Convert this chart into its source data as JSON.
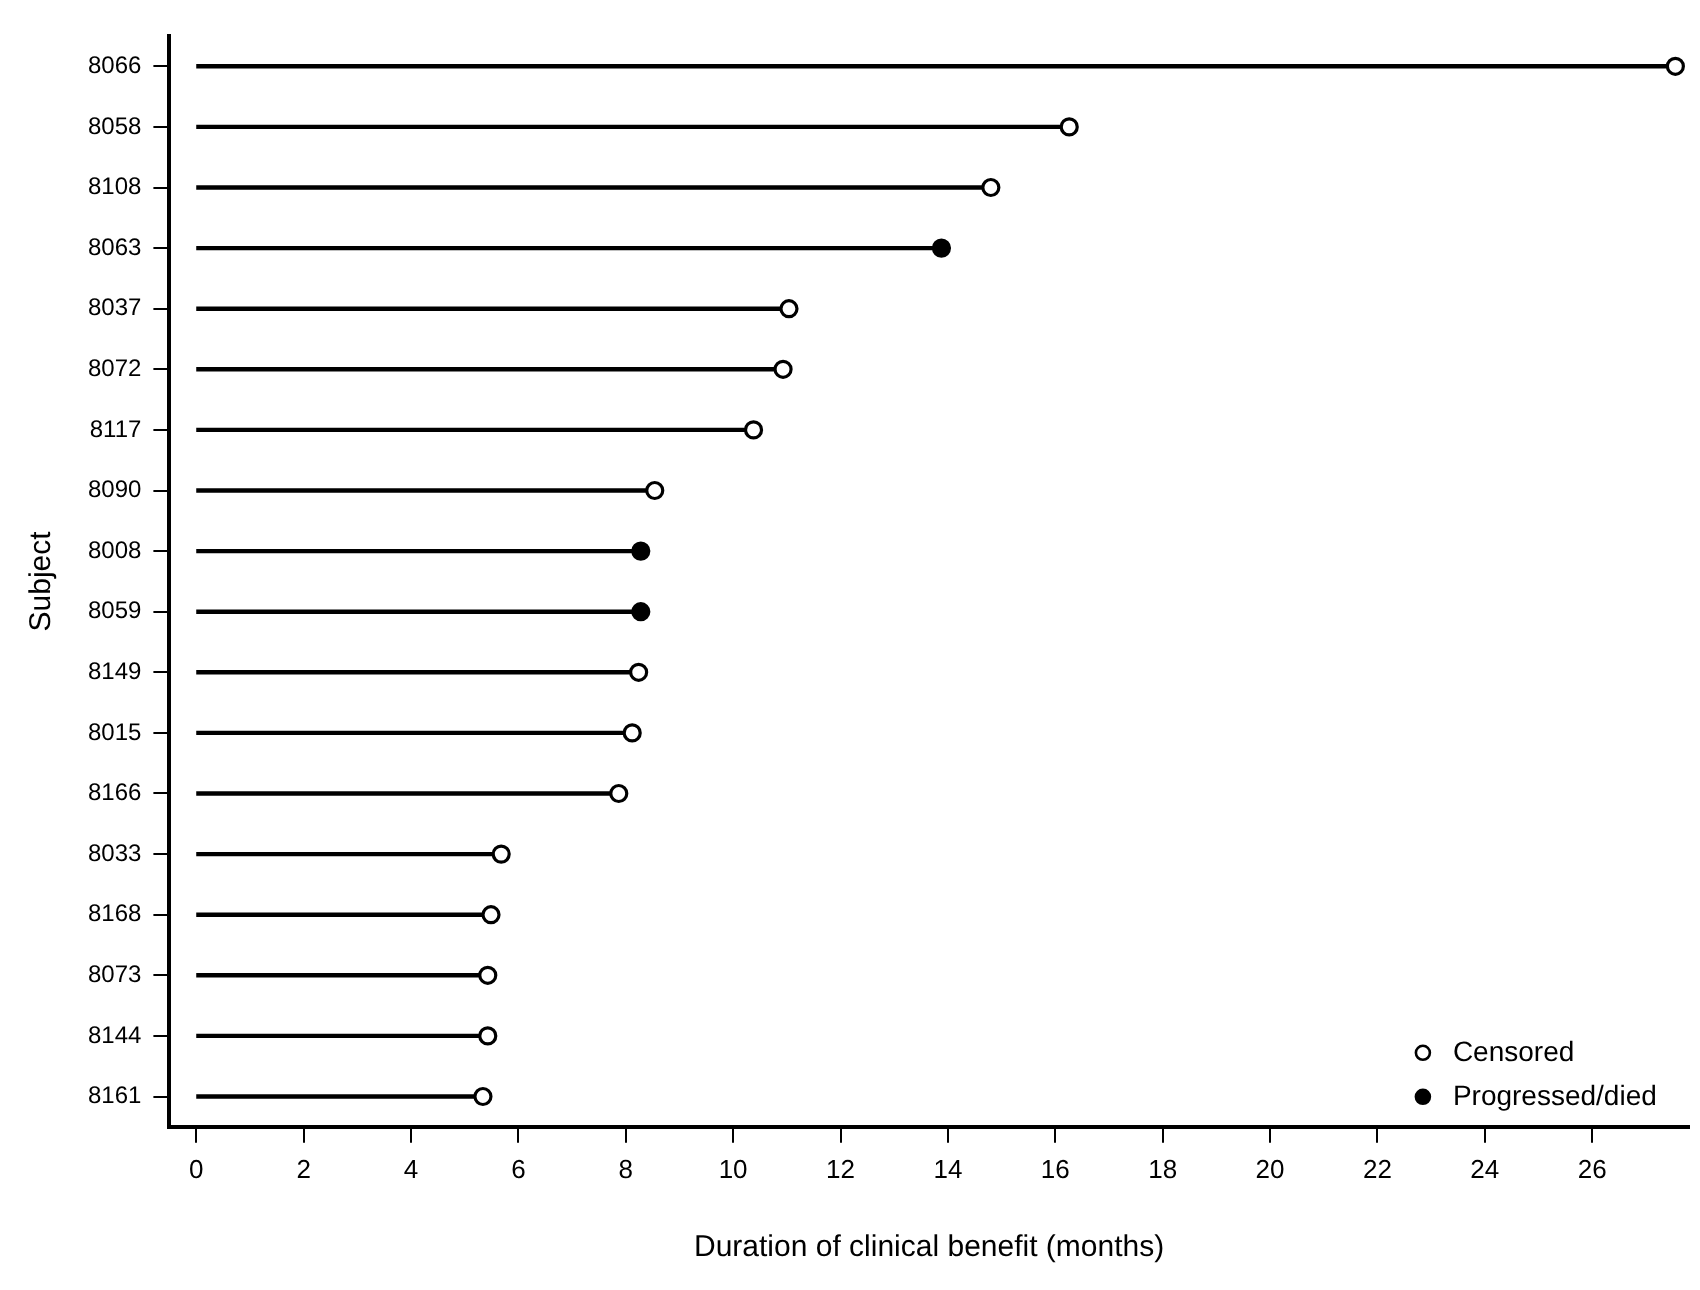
{
  "chart_data": {
    "type": "lollipop",
    "orientation": "horizontal",
    "xlabel": "Duration of clinical benefit (months)",
    "ylabel": "Subject",
    "color": "#000000",
    "categories": [
      "8066",
      "8058",
      "8108",
      "8063",
      "8037",
      "8072",
      "8117",
      "8090",
      "8008",
      "8059",
      "8149",
      "8015",
      "8166",
      "8033",
      "8168",
      "8073",
      "8144",
      "8161"
    ],
    "series": [
      {
        "name": "Censored",
        "color": "#ffffff",
        "marker": "circle",
        "values": [
          27.55,
          16.26,
          14.8,
          null,
          11.04,
          10.93,
          10.38,
          8.54,
          null,
          null,
          8.24,
          8.12,
          7.87,
          5.68,
          5.49,
          5.43,
          5.43,
          5.34
        ]
      },
      {
        "name": "Progressed/died",
        "color": "#000000",
        "marker": "circle",
        "values": [
          null,
          null,
          null,
          13.88,
          null,
          null,
          null,
          null,
          8.28,
          8.28,
          null,
          null,
          null,
          null,
          null,
          null,
          null,
          null
        ]
      }
    ],
    "xlim": [
      -0.5,
      27.8
    ],
    "xticks": [
      0,
      2,
      4,
      6,
      8,
      10,
      12,
      14,
      16,
      18,
      20,
      22,
      24,
      26
    ],
    "legend": "bottom right",
    "grid": false
  }
}
